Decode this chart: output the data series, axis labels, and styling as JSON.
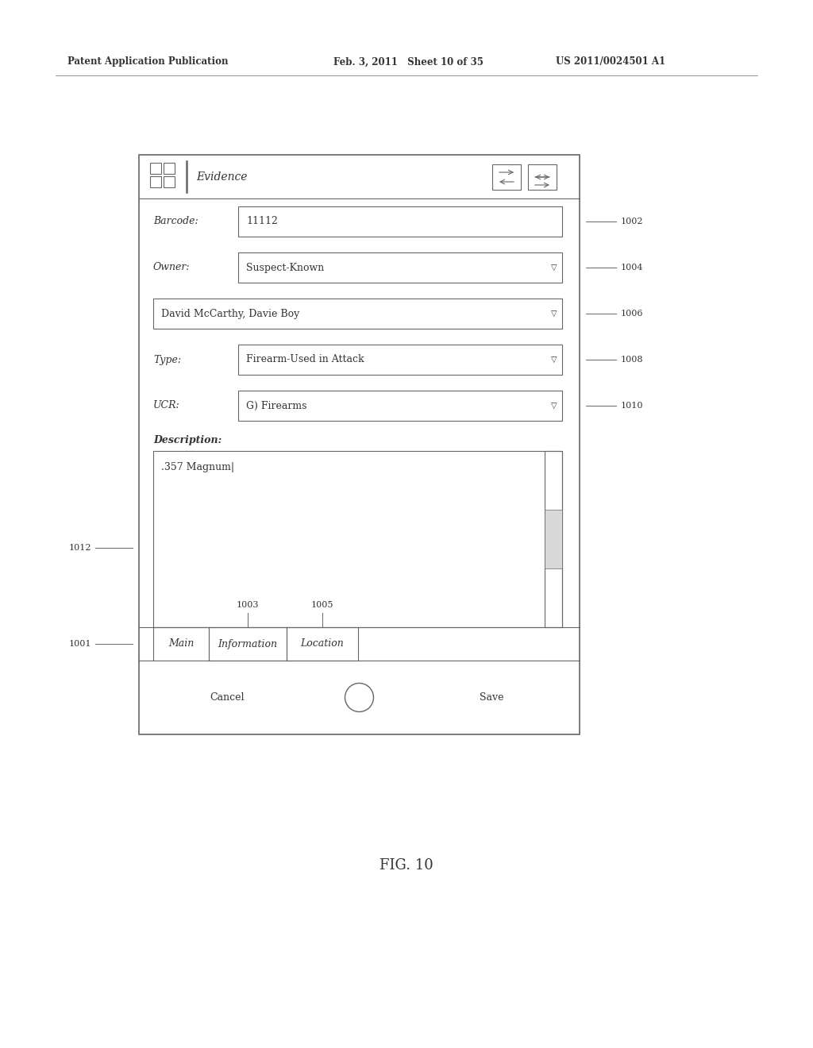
{
  "bg_color": "#ffffff",
  "header_text_left": "Patent Application Publication",
  "header_text_mid": "Feb. 3, 2011   Sheet 10 of 35",
  "header_text_right": "US 2011/0024501 A1",
  "fig_label": "FIG. 10",
  "title_bar": "Evidence",
  "barcode_label": "Barcode:",
  "barcode_value": "11112",
  "owner_label": "Owner:",
  "owner_value": "Suspect-Known",
  "person_value": "David McCarthy, Davie Boy",
  "type_label": "Type:",
  "type_value": "Firearm-Used in Attack",
  "ucr_label": "UCR:",
  "ucr_value": "G) Firearms",
  "desc_label": "Description:",
  "desc_value": ".357 Magnum|",
  "tab_main": "Main",
  "tab_info": "Information",
  "tab_loc": "Location",
  "btn_cancel": "Cancel",
  "btn_save": "Save",
  "ref_1001": "1001",
  "ref_1002": "1002",
  "ref_1003": "1003",
  "ref_1004": "1004",
  "ref_1005": "1005",
  "ref_1006": "1006",
  "ref_1008": "1008",
  "ref_1010": "1010",
  "ref_1012": "1012",
  "line_color": "#666666",
  "text_color": "#333333",
  "font_size_header": 8.5,
  "font_size_body": 9,
  "font_size_title": 10,
  "font_size_ref": 8,
  "font_size_fig": 13
}
